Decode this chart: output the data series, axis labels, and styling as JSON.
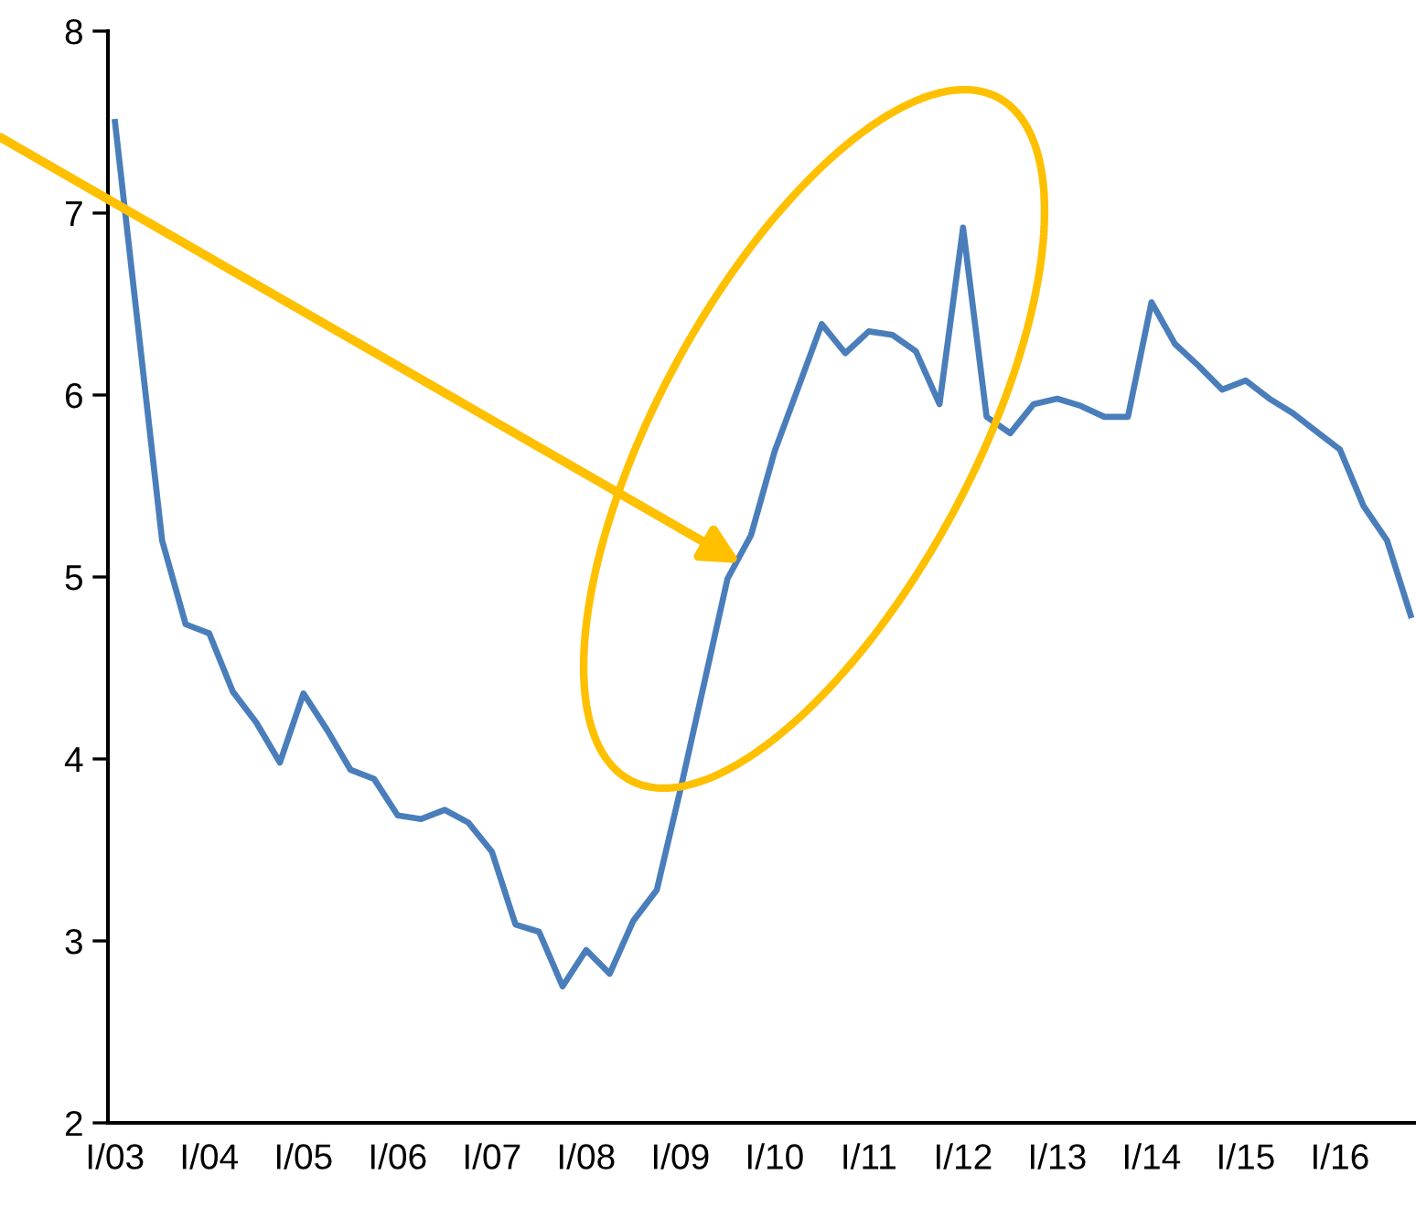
{
  "chart_data": {
    "type": "line",
    "categories": [
      "I/03",
      null,
      null,
      null,
      "I/04",
      null,
      null,
      null,
      "I/05",
      null,
      null,
      null,
      "I/06",
      null,
      null,
      null,
      "I/07",
      null,
      null,
      null,
      "I/08",
      null,
      null,
      null,
      "I/09",
      null,
      null,
      null,
      "I/10",
      null,
      null,
      null,
      "I/11",
      null,
      null,
      null,
      "I/12",
      null,
      null,
      null,
      "I/13",
      null,
      null,
      null,
      "I/14",
      null,
      null,
      null,
      "I/15",
      null,
      null,
      null,
      "I/16",
      null,
      null,
      null
    ],
    "series": [
      {
        "color": "#4a7ebb",
        "values": [
          7.5,
          6.35,
          5.2,
          4.74,
          4.69,
          4.37,
          4.2,
          3.98,
          4.36,
          4.16,
          3.94,
          3.89,
          3.69,
          3.67,
          3.72,
          3.65,
          3.49,
          3.09,
          3.05,
          2.75,
          2.95,
          2.82,
          3.11,
          3.28,
          3.83,
          4.41,
          4.99,
          5.23,
          5.69,
          6.04,
          6.39,
          6.23,
          6.35,
          6.33,
          6.24,
          5.95,
          6.92,
          5.88,
          5.79,
          5.95,
          5.98,
          5.94,
          5.88,
          5.88,
          6.51,
          6.28,
          6.16,
          6.03,
          6.08,
          5.98,
          5.9,
          5.8,
          5.7,
          5.39,
          5.2,
          4.79
        ]
      }
    ],
    "ylim": [
      2,
      8
    ],
    "yticks": [
      2,
      3,
      4,
      5,
      6,
      7,
      8
    ],
    "grid": false,
    "legend": false,
    "marker": "none",
    "line_style": "solid"
  }
}
